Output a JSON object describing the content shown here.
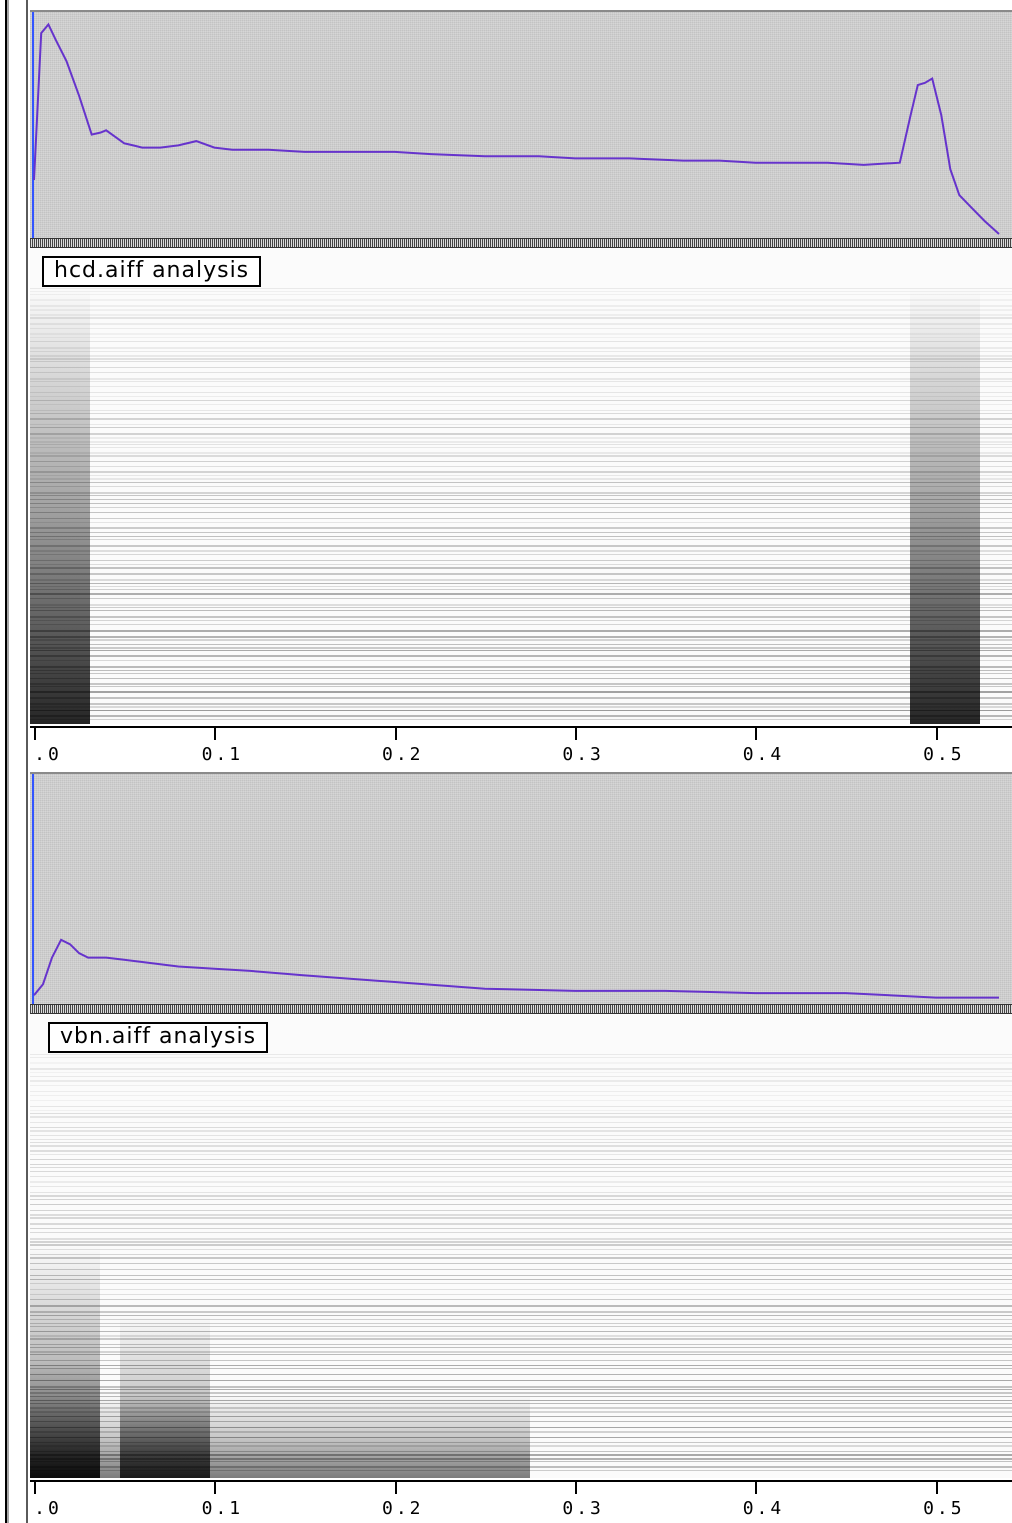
{
  "panels": [
    {
      "label": "hcd.aiff analysis",
      "axis_ticks": [
        ".0",
        "0.1",
        "0.2",
        "0.3",
        "0.4",
        "0.5"
      ],
      "envelope_color": "#6633cc",
      "chart_data": {
        "type": "line",
        "xlabel": "",
        "ylabel": "",
        "xlim": [
          0,
          0.54
        ],
        "ylim": [
          0,
          1
        ],
        "x": [
          0.0,
          0.004,
          0.008,
          0.012,
          0.018,
          0.025,
          0.032,
          0.037,
          0.04,
          0.045,
          0.05,
          0.055,
          0.06,
          0.07,
          0.08,
          0.09,
          0.1,
          0.11,
          0.13,
          0.15,
          0.17,
          0.2,
          0.22,
          0.25,
          0.28,
          0.3,
          0.33,
          0.36,
          0.38,
          0.4,
          0.42,
          0.44,
          0.46,
          0.48,
          0.486,
          0.49,
          0.494,
          0.498,
          0.503,
          0.508,
          0.513,
          0.52,
          0.527,
          0.535
        ],
        "y": [
          0.25,
          0.93,
          0.97,
          0.9,
          0.8,
          0.64,
          0.46,
          0.47,
          0.48,
          0.45,
          0.42,
          0.41,
          0.4,
          0.4,
          0.41,
          0.43,
          0.4,
          0.39,
          0.39,
          0.38,
          0.38,
          0.38,
          0.37,
          0.36,
          0.36,
          0.35,
          0.35,
          0.34,
          0.34,
          0.33,
          0.33,
          0.33,
          0.32,
          0.33,
          0.55,
          0.69,
          0.7,
          0.72,
          0.55,
          0.3,
          0.18,
          0.12,
          0.06,
          0.0
        ]
      }
    },
    {
      "label": "vbn.aiff analysis",
      "axis_ticks": [
        ".0",
        "0.1",
        "0.2",
        "0.3",
        "0.4",
        "0.5"
      ],
      "envelope_color": "#6633cc",
      "chart_data": {
        "type": "line",
        "xlabel": "",
        "ylabel": "",
        "xlim": [
          0,
          0.54
        ],
        "ylim": [
          0,
          1
        ],
        "x": [
          0.0,
          0.005,
          0.01,
          0.015,
          0.02,
          0.025,
          0.03,
          0.04,
          0.05,
          0.06,
          0.08,
          0.1,
          0.12,
          0.15,
          0.2,
          0.25,
          0.3,
          0.35,
          0.4,
          0.45,
          0.5,
          0.535
        ],
        "y": [
          0.03,
          0.08,
          0.2,
          0.28,
          0.26,
          0.22,
          0.2,
          0.2,
          0.19,
          0.18,
          0.16,
          0.15,
          0.14,
          0.12,
          0.09,
          0.06,
          0.05,
          0.05,
          0.04,
          0.04,
          0.02,
          0.02
        ]
      }
    }
  ]
}
